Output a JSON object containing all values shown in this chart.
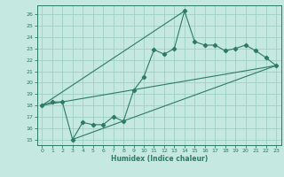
{
  "title": "",
  "xlabel": "Humidex (Indice chaleur)",
  "bg_color": "#c5e8e0",
  "grid_color": "#9ecfc5",
  "line_color": "#2d7a68",
  "xlim": [
    -0.5,
    23.5
  ],
  "ylim": [
    14.5,
    26.8
  ],
  "yticks": [
    15,
    16,
    17,
    18,
    19,
    20,
    21,
    22,
    23,
    24,
    25,
    26
  ],
  "xticks": [
    0,
    1,
    2,
    3,
    4,
    5,
    6,
    7,
    8,
    9,
    10,
    11,
    12,
    13,
    14,
    15,
    16,
    17,
    18,
    19,
    20,
    21,
    22,
    23
  ],
  "main_x": [
    0,
    1,
    2,
    3,
    4,
    5,
    6,
    7,
    8,
    9,
    10,
    11,
    12,
    13,
    14,
    15,
    16,
    17,
    18,
    19,
    20,
    21,
    22,
    23
  ],
  "main_y": [
    18.0,
    18.3,
    18.3,
    15.0,
    16.5,
    16.3,
    16.3,
    17.0,
    16.6,
    19.3,
    20.5,
    22.9,
    22.5,
    23.0,
    26.3,
    23.6,
    23.3,
    23.3,
    22.8,
    23.0,
    23.3,
    22.8,
    22.2,
    21.5
  ],
  "line1_x": [
    0,
    23
  ],
  "line1_y": [
    18.0,
    21.5
  ],
  "line2_x": [
    3,
    23
  ],
  "line2_y": [
    15.0,
    21.5
  ],
  "line3_x": [
    0,
    14
  ],
  "line3_y": [
    18.0,
    26.3
  ]
}
